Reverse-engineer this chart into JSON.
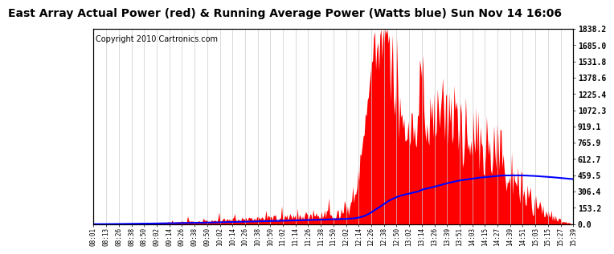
{
  "title": "East Array Actual Power (red) & Running Average Power (Watts blue) Sun Nov 14 16:06",
  "copyright": "Copyright 2010 Cartronics.com",
  "ylabel_right": [
    "1838.2",
    "1685.0",
    "1531.8",
    "1378.6",
    "1225.4",
    "1072.3",
    "919.1",
    "765.9",
    "612.7",
    "459.5",
    "306.4",
    "153.2",
    "0.0"
  ],
  "yticks": [
    1838.2,
    1685.0,
    1531.8,
    1378.6,
    1225.4,
    1072.3,
    919.1,
    765.9,
    612.7,
    459.5,
    306.4,
    153.2,
    0.0
  ],
  "ymax": 1838.2,
  "ymin": 0.0,
  "xtick_labels": [
    "08:01",
    "08:13",
    "08:26",
    "08:38",
    "08:50",
    "09:02",
    "09:14",
    "09:26",
    "09:38",
    "09:50",
    "10:02",
    "10:14",
    "10:26",
    "10:38",
    "10:50",
    "11:02",
    "11:14",
    "11:26",
    "11:38",
    "11:50",
    "12:02",
    "12:14",
    "12:26",
    "12:38",
    "12:50",
    "13:02",
    "13:14",
    "13:26",
    "13:39",
    "13:51",
    "14:03",
    "14:15",
    "14:27",
    "14:39",
    "14:51",
    "15:03",
    "15:15",
    "15:27",
    "15:39"
  ],
  "bg_color": "#ffffff",
  "plot_bg_color": "#ffffff",
  "grid_color": "#cccccc",
  "bar_color": "#ff0000",
  "line_color": "#0000ff",
  "title_fontsize": 10,
  "copyright_fontsize": 7
}
